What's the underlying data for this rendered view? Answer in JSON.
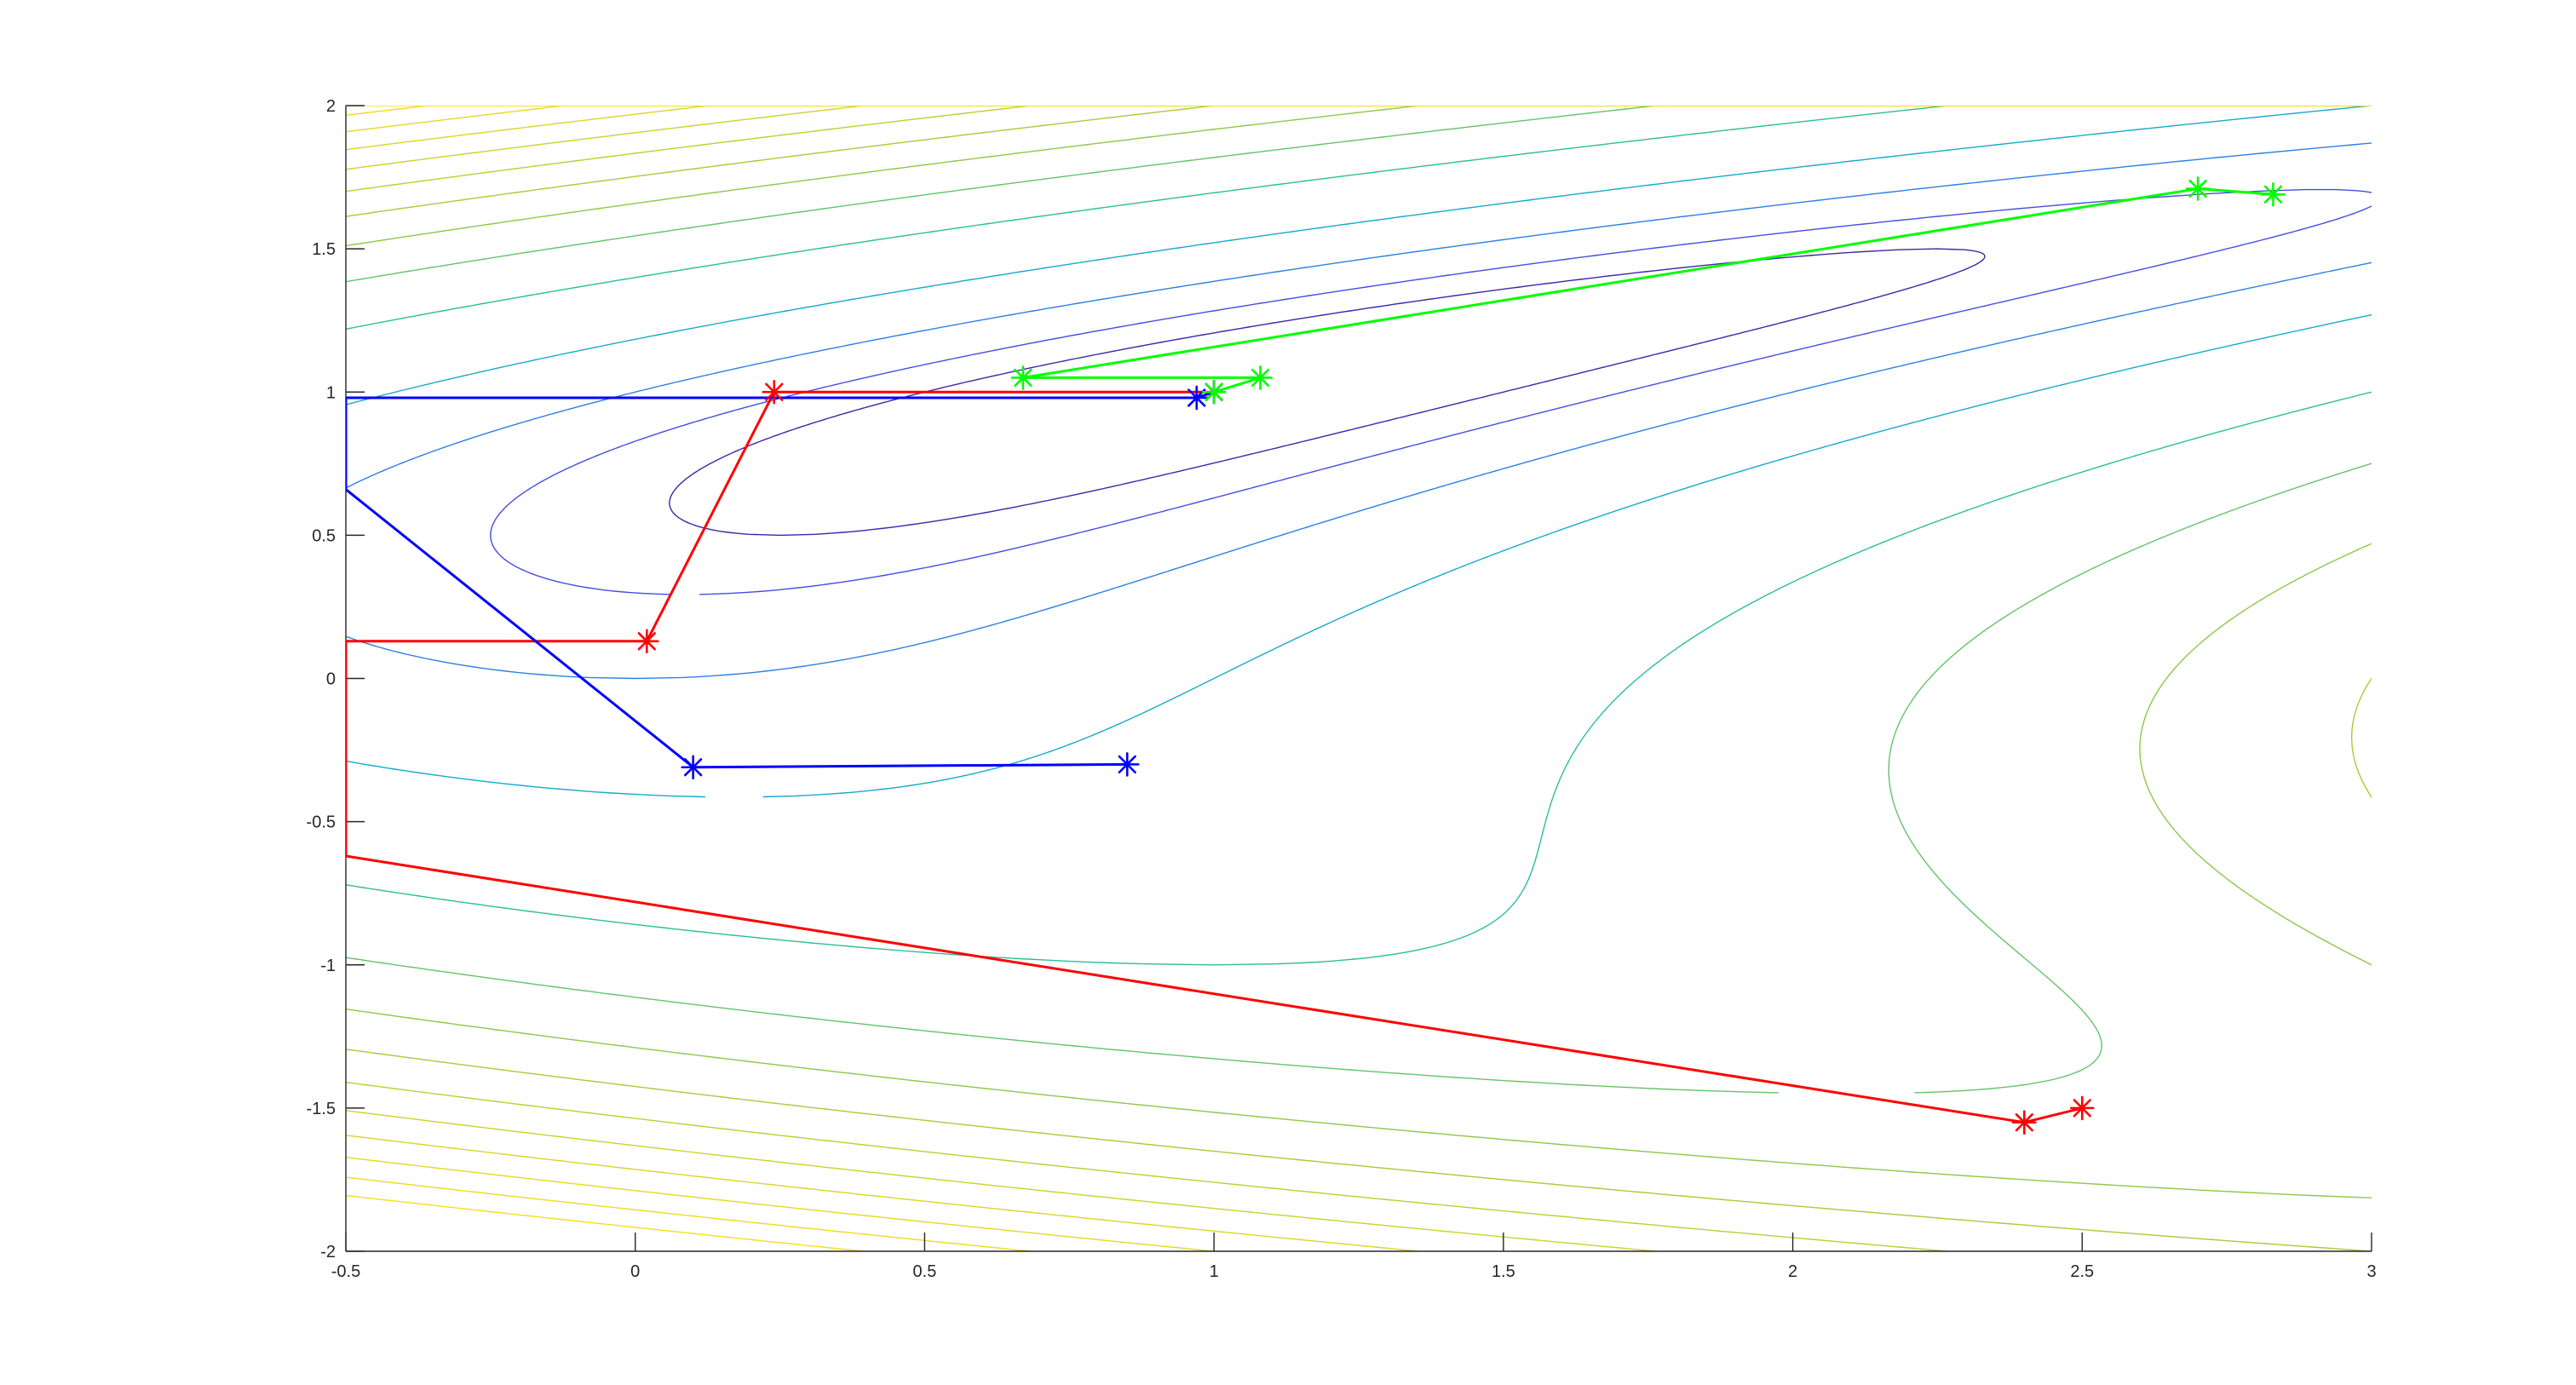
{
  "chart_data": {
    "type": "line",
    "title": "",
    "xlabel": "",
    "ylabel": "",
    "xlim": [
      -0.5,
      3
    ],
    "ylim": [
      -2,
      2
    ],
    "grid": false,
    "legend": "none",
    "x_ticks": [
      "-0.5",
      "0",
      "0.5",
      "1",
      "1.5",
      "2",
      "2.5",
      "3"
    ],
    "y_ticks": [
      "-2",
      "-1.5",
      "-1",
      "-0.5",
      "0",
      "0.5",
      "1",
      "1.5",
      "2"
    ],
    "x_tick_values": [
      -0.5,
      0,
      0.5,
      1,
      1.5,
      2,
      2.5,
      3
    ],
    "y_tick_values": [
      -2,
      -1.5,
      -1,
      -0.5,
      0,
      0.5,
      1,
      1.5,
      2
    ],
    "background": {
      "type": "contour",
      "function": "(x - y^2)^2 + (1 - y)^2 style valley",
      "levels": [
        0.25,
        0.5,
        1,
        2,
        4,
        6,
        8,
        10,
        12,
        14,
        16,
        18,
        20,
        22
      ],
      "colormap": "parula"
    },
    "series": [
      {
        "color": "#ff0000",
        "marker": "*",
        "points": [
          [
            2.5,
            -1.5
          ],
          [
            2.4,
            -1.55
          ],
          [
            -0.5,
            -0.62
          ],
          [
            -0.5,
            0.13
          ],
          [
            0.02,
            0.13
          ],
          [
            0.24,
            1.0
          ],
          [
            1.0,
            1.0
          ]
        ]
      },
      {
        "color": "#0000ff",
        "marker": "*",
        "points": [
          [
            0.85,
            -0.3
          ],
          [
            0.1,
            -0.31
          ],
          [
            -0.5,
            0.66
          ],
          [
            -0.5,
            0.98
          ],
          [
            0.97,
            0.98
          ],
          [
            1.0,
            1.0
          ]
        ]
      },
      {
        "color": "#00ff00",
        "marker": "*",
        "points": [
          [
            2.83,
            1.69
          ],
          [
            2.7,
            1.71
          ],
          [
            0.67,
            1.05
          ],
          [
            1.08,
            1.05
          ],
          [
            1.0,
            1.0
          ]
        ]
      }
    ]
  }
}
